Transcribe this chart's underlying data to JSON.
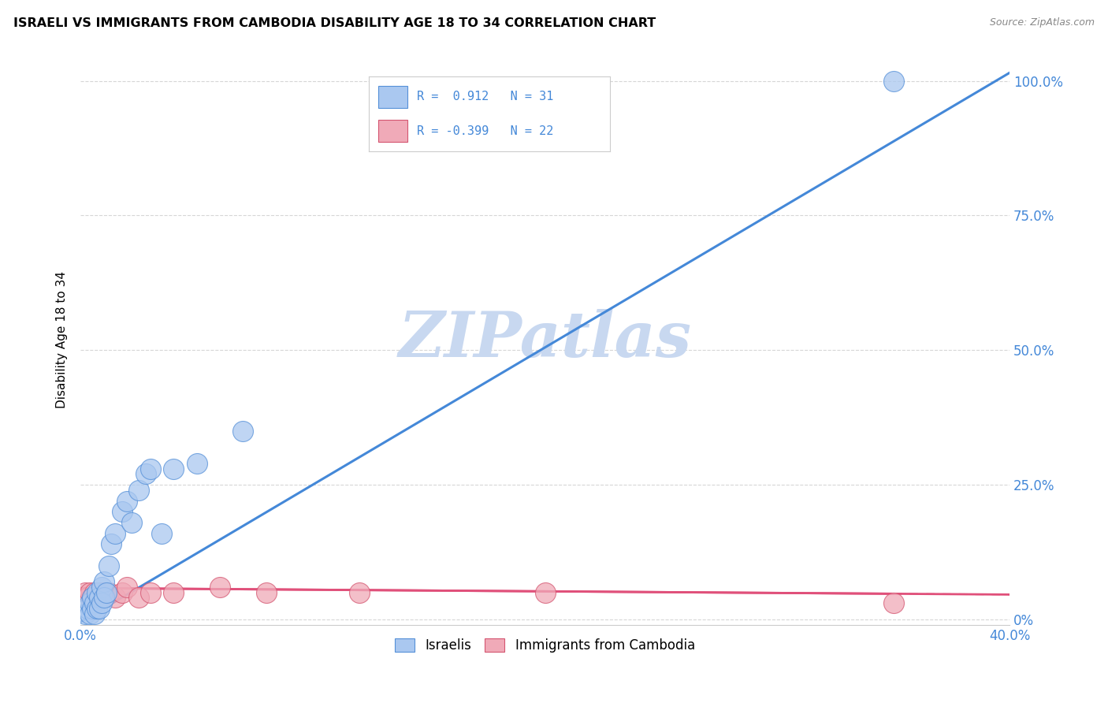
{
  "title": "ISRAELI VS IMMIGRANTS FROM CAMBODIA DISABILITY AGE 18 TO 34 CORRELATION CHART",
  "source": "Source: ZipAtlas.com",
  "ylabel": "Disability Age 18 to 34",
  "xlim": [
    0.0,
    0.4
  ],
  "ylim": [
    -0.01,
    1.05
  ],
  "xticks": [
    0.0,
    0.1,
    0.2,
    0.3,
    0.4
  ],
  "xtick_labels": [
    "0.0%",
    "",
    "",
    "",
    "40.0%"
  ],
  "yticks_right": [
    0.0,
    0.25,
    0.5,
    0.75,
    1.0
  ],
  "ytick_labels_right": [
    "0%",
    "25.0%",
    "50.0%",
    "75.0%",
    "100.0%"
  ],
  "israeli_color": "#aac8f0",
  "cambodia_color": "#f0aab8",
  "israeli_edge_color": "#5590d8",
  "cambodia_edge_color": "#d45570",
  "israeli_line_color": "#4488d8",
  "cambodia_line_color": "#e0507a",
  "watermark": "ZIPatlas",
  "watermark_color": "#c8d8f0",
  "axis_color": "#4488d8",
  "grid_color": "#cccccc",
  "israelis_x": [
    0.002,
    0.003,
    0.004,
    0.004,
    0.005,
    0.005,
    0.006,
    0.006,
    0.007,
    0.007,
    0.008,
    0.008,
    0.009,
    0.009,
    0.01,
    0.01,
    0.011,
    0.012,
    0.013,
    0.015,
    0.018,
    0.02,
    0.022,
    0.025,
    0.028,
    0.03,
    0.035,
    0.04,
    0.05,
    0.07,
    0.35
  ],
  "israelis_y": [
    0.01,
    0.02,
    0.03,
    0.01,
    0.02,
    0.04,
    0.03,
    0.01,
    0.05,
    0.02,
    0.04,
    0.02,
    0.06,
    0.03,
    0.07,
    0.04,
    0.05,
    0.1,
    0.14,
    0.16,
    0.2,
    0.22,
    0.18,
    0.24,
    0.27,
    0.28,
    0.16,
    0.28,
    0.29,
    0.35,
    1.0
  ],
  "cambodia_x": [
    0.001,
    0.002,
    0.003,
    0.004,
    0.005,
    0.006,
    0.007,
    0.008,
    0.009,
    0.01,
    0.012,
    0.015,
    0.018,
    0.02,
    0.025,
    0.03,
    0.04,
    0.06,
    0.08,
    0.12,
    0.2,
    0.35
  ],
  "cambodia_y": [
    0.04,
    0.05,
    0.04,
    0.05,
    0.04,
    0.05,
    0.04,
    0.05,
    0.04,
    0.05,
    0.05,
    0.04,
    0.05,
    0.06,
    0.04,
    0.05,
    0.05,
    0.06,
    0.05,
    0.05,
    0.05,
    0.03
  ],
  "israeli_slope": 2.55,
  "israeli_intercept": -0.005,
  "cambodia_slope": -0.03,
  "cambodia_intercept": 0.058
}
